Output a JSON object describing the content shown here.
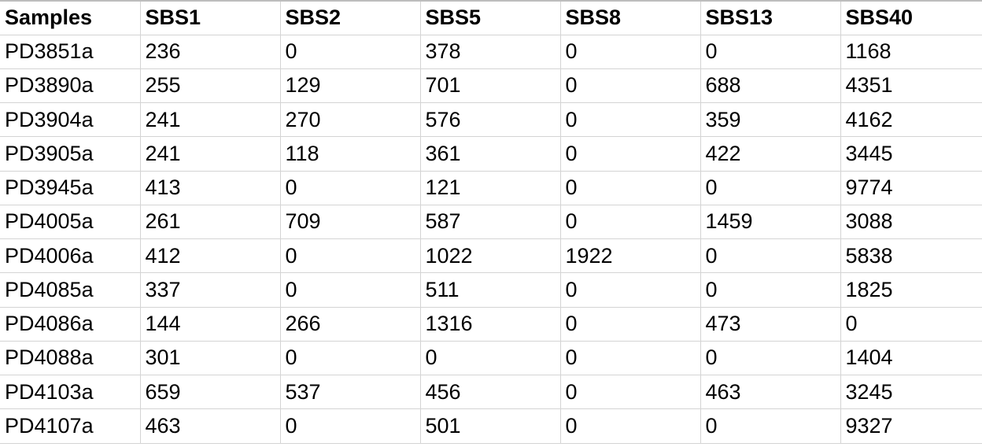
{
  "table": {
    "headers": [
      "Samples",
      "SBS1",
      "SBS2",
      "SBS5",
      "SBS8",
      "SBS13",
      "SBS40"
    ],
    "rows": [
      [
        "PD3851a",
        "236",
        "0",
        "378",
        "0",
        "0",
        "1168"
      ],
      [
        "PD3890a",
        "255",
        "129",
        "701",
        "0",
        "688",
        "4351"
      ],
      [
        "PD3904a",
        "241",
        "270",
        "576",
        "0",
        "359",
        "4162"
      ],
      [
        "PD3905a",
        "241",
        "118",
        "361",
        "0",
        "422",
        "3445"
      ],
      [
        "PD3945a",
        "413",
        "0",
        "121",
        "0",
        "0",
        "9774"
      ],
      [
        "PD4005a",
        "261",
        "709",
        "587",
        "0",
        "1459",
        "3088"
      ],
      [
        "PD4006a",
        "412",
        "0",
        "1022",
        "1922",
        "0",
        "5838"
      ],
      [
        "PD4085a",
        "337",
        "0",
        "511",
        "0",
        "0",
        "1825"
      ],
      [
        "PD4086a",
        "144",
        "266",
        "1316",
        "0",
        "473",
        "0"
      ],
      [
        "PD4088a",
        "301",
        "0",
        "0",
        "0",
        "0",
        "1404"
      ],
      [
        "PD4103a",
        "659",
        "537",
        "456",
        "0",
        "463",
        "3245"
      ],
      [
        "PD4107a",
        "463",
        "0",
        "501",
        "0",
        "0",
        "9327"
      ]
    ]
  },
  "colors": {
    "gridline": "#d4d4d4",
    "top_border": "#bdbdbd",
    "text": "#000000",
    "background": "#ffffff"
  }
}
